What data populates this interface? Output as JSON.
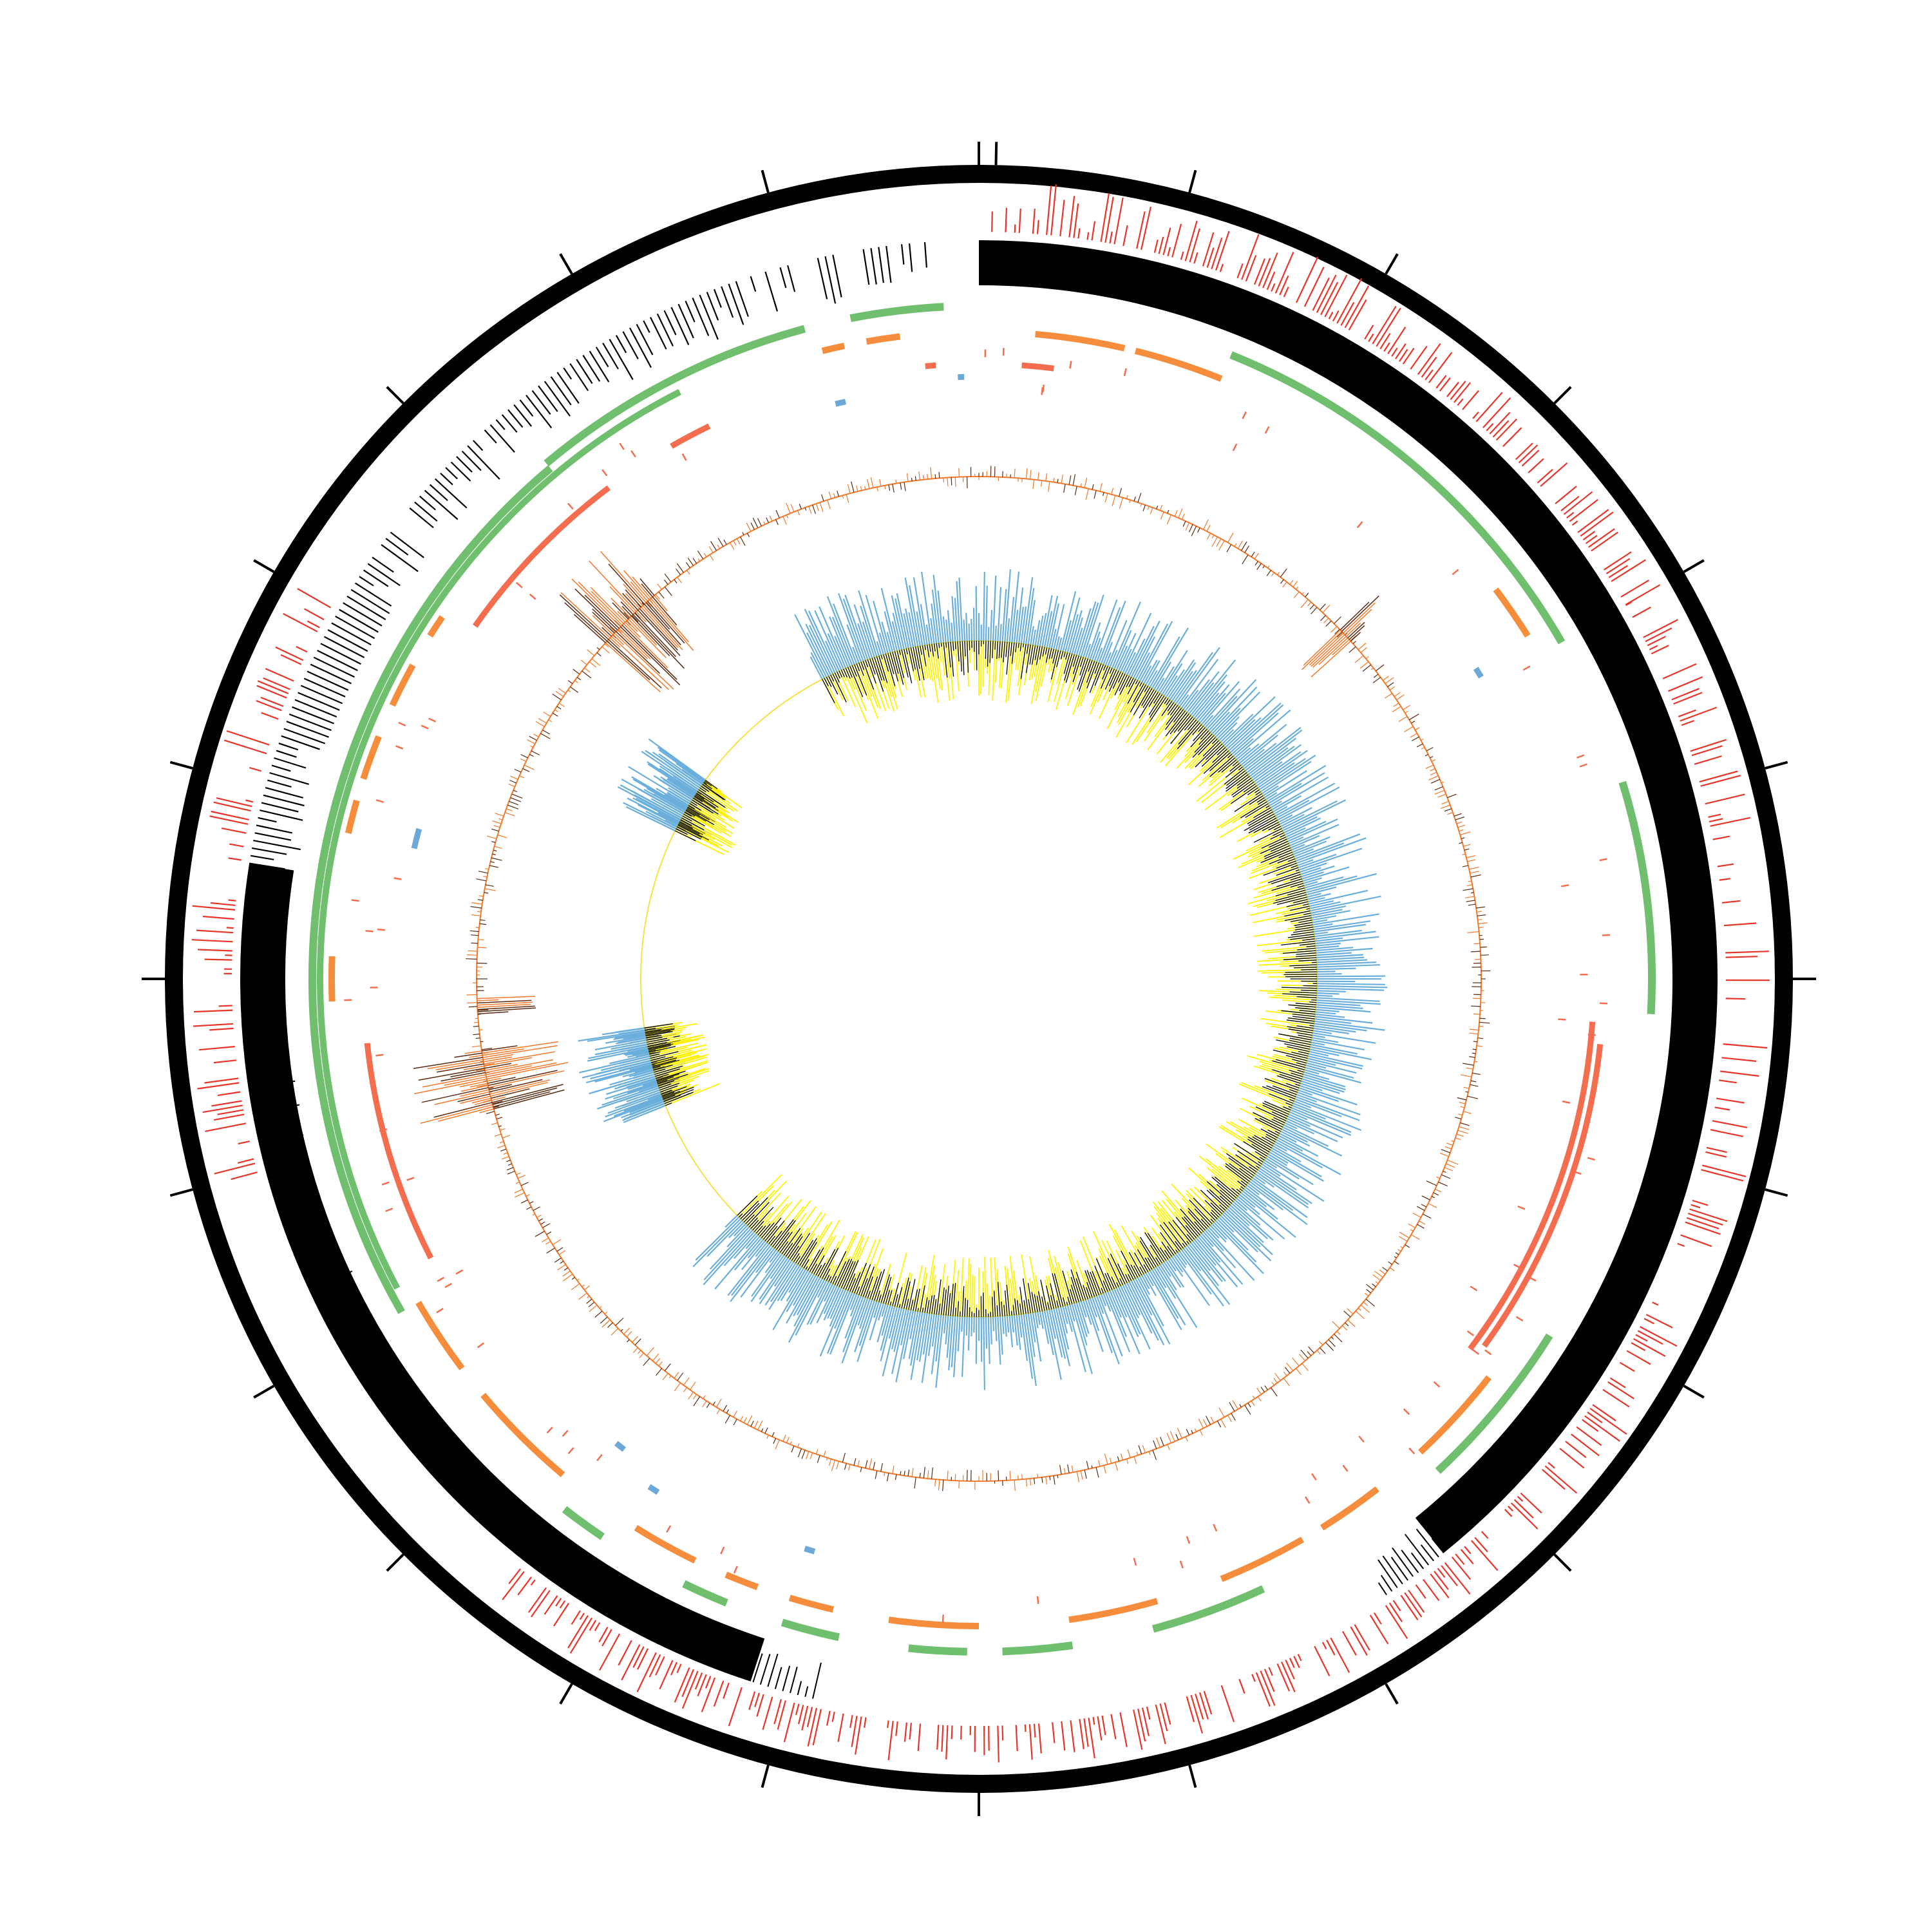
{
  "diagram": {
    "type": "circular-genome-map",
    "colors": {
      "outer_ring": "#000000",
      "ticks": "#000000",
      "red_bars": "#e8352a",
      "black_backbone": "#000000",
      "green_segments": "#6fbf6f",
      "orange_segments": "#f58d3d",
      "salmon_segments": "#f46d4f",
      "blue_small": "#6ea8d6",
      "gc_skew_line": "#f0792b",
      "gc_skew_dark": "#5a2a10",
      "blue_histogram": "#6aaedc",
      "yellow_histogram": "#fff200",
      "black_histogram": "#000000",
      "inner_baseline": "#f5e14a",
      "background": "#ffffff"
    },
    "outer_tick_count": 24,
    "rings": [
      {
        "name": "outer-ring",
        "description_hidden": true
      },
      {
        "name": "red-feature-bars"
      },
      {
        "name": "black-coverage-backbone"
      },
      {
        "name": "green-segments"
      },
      {
        "name": "orange-segments"
      },
      {
        "name": "salmon-segments"
      },
      {
        "name": "blue-small-features"
      },
      {
        "name": "gc-skew-trace"
      },
      {
        "name": "blue-histogram"
      },
      {
        "name": "yellow-black-histogram"
      }
    ]
  }
}
